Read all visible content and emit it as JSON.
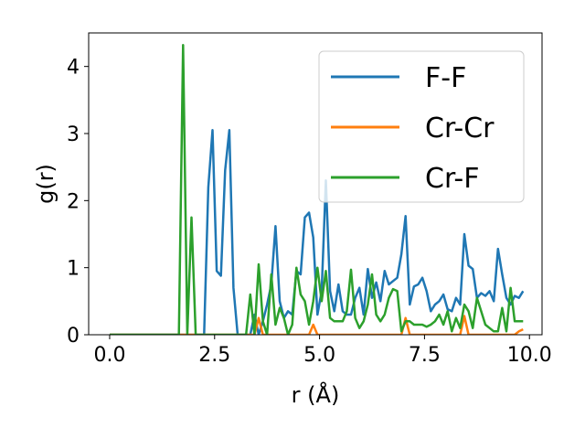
{
  "chart_data": {
    "type": "line",
    "xlabel": "r (Å)",
    "ylabel": "g(r)",
    "xlim": [
      -0.5,
      10.3
    ],
    "ylim": [
      0,
      4.5
    ],
    "xticks": [
      0.0,
      2.5,
      5.0,
      7.5,
      10.0
    ],
    "xtick_labels": [
      "0.0",
      "2.5",
      "5.0",
      "7.5",
      "10.0"
    ],
    "yticks": [
      0,
      1,
      2,
      3,
      4
    ],
    "ytick_labels": [
      "0",
      "1",
      "2",
      "3",
      "4"
    ],
    "grid": false,
    "legend_position": "upper right",
    "x": [
      0.0,
      1.55,
      1.65,
      1.75,
      1.85,
      1.95,
      2.05,
      2.15,
      2.25,
      2.35,
      2.45,
      2.55,
      2.65,
      2.75,
      2.85,
      2.95,
      3.05,
      3.15,
      3.25,
      3.35,
      3.45,
      3.55,
      3.65,
      3.75,
      3.85,
      3.95,
      4.05,
      4.15,
      4.25,
      4.35,
      4.45,
      4.55,
      4.65,
      4.75,
      4.85,
      4.95,
      5.05,
      5.15,
      5.25,
      5.35,
      5.45,
      5.55,
      5.65,
      5.75,
      5.85,
      5.95,
      6.05,
      6.15,
      6.25,
      6.35,
      6.45,
      6.55,
      6.65,
      6.75,
      6.85,
      6.95,
      7.05,
      7.15,
      7.25,
      7.35,
      7.45,
      7.55,
      7.65,
      7.75,
      7.85,
      7.95,
      8.05,
      8.15,
      8.25,
      8.35,
      8.45,
      8.55,
      8.65,
      8.75,
      8.85,
      8.95,
      9.05,
      9.15,
      9.25,
      9.35,
      9.45,
      9.55,
      9.65,
      9.75,
      9.85
    ],
    "series": [
      {
        "name": "F-F",
        "color": "#1f77b4",
        "values": [
          0,
          0,
          0,
          0,
          0,
          0,
          0,
          0,
          0,
          2.2,
          3.05,
          0.95,
          0.88,
          2.45,
          3.05,
          0.7,
          0,
          0,
          0,
          0,
          0.3,
          0,
          0.2,
          0.45,
          0.75,
          1.62,
          0.5,
          0.25,
          0.35,
          0.3,
          0.95,
          0.9,
          1.75,
          1.82,
          1.45,
          0.3,
          0.65,
          2.3,
          0.65,
          0.35,
          0.75,
          0.35,
          0.3,
          0.3,
          0.55,
          0.7,
          0.3,
          0.98,
          0.55,
          0.78,
          0.5,
          0.95,
          0.75,
          0.8,
          0.85,
          1.2,
          1.77,
          0.45,
          0.72,
          0.75,
          0.85,
          0.65,
          0.35,
          0.45,
          0.5,
          0.6,
          0.38,
          0.35,
          0.55,
          0.45,
          1.5,
          1.03,
          0.98,
          0.55,
          0.62,
          0.58,
          0.65,
          0.5,
          1.28,
          0.9,
          0.55,
          0.45,
          0.58,
          0.55,
          0.65
        ]
      },
      {
        "name": "Cr-Cr",
        "color": "#ff7f0e",
        "values": [
          0,
          0,
          0,
          0,
          0,
          0,
          0,
          0,
          0,
          0,
          0,
          0,
          0,
          0,
          0,
          0,
          0,
          0,
          0,
          0,
          0,
          0.25,
          0,
          0,
          0,
          0,
          0,
          0,
          0,
          0,
          0,
          0,
          0,
          0,
          0.15,
          0,
          0,
          0,
          0,
          0,
          0,
          0,
          0,
          0,
          0,
          0,
          0,
          0,
          0,
          0,
          0,
          0,
          0,
          0,
          0,
          0,
          0.25,
          0,
          0,
          0,
          0,
          0,
          0,
          0,
          0,
          0,
          0,
          0,
          0,
          0,
          0.28,
          0,
          0,
          0,
          0,
          0,
          0,
          0,
          0,
          0,
          0,
          0,
          0,
          0.05,
          0.08
        ]
      },
      {
        "name": "Cr-F",
        "color": "#2ca02c",
        "values": [
          0,
          0,
          0,
          4.32,
          0,
          1.75,
          0,
          0,
          0,
          0,
          0,
          0,
          0,
          0,
          0,
          0,
          0,
          0,
          0,
          0.6,
          0,
          1.05,
          0.2,
          0,
          0.9,
          0.15,
          0.4,
          0.25,
          0,
          0.15,
          1.0,
          0.6,
          0.5,
          0.15,
          0.5,
          1.0,
          0.5,
          0.95,
          0.25,
          0.2,
          0.2,
          0.2,
          0.35,
          0.97,
          0.25,
          0.1,
          0.2,
          0.45,
          0.9,
          0.3,
          0.2,
          0.3,
          0.55,
          0.68,
          0.65,
          0.05,
          0.2,
          0.2,
          0.15,
          0.15,
          0.15,
          0.12,
          0.15,
          0.2,
          0.3,
          0.15,
          0.35,
          0.05,
          0.25,
          0.1,
          0.45,
          0.35,
          0.1,
          0.55,
          0.35,
          0.15,
          0.1,
          0.05,
          0.05,
          0.4,
          0.05,
          0.7,
          0.2,
          0.2,
          0.2
        ]
      }
    ]
  }
}
